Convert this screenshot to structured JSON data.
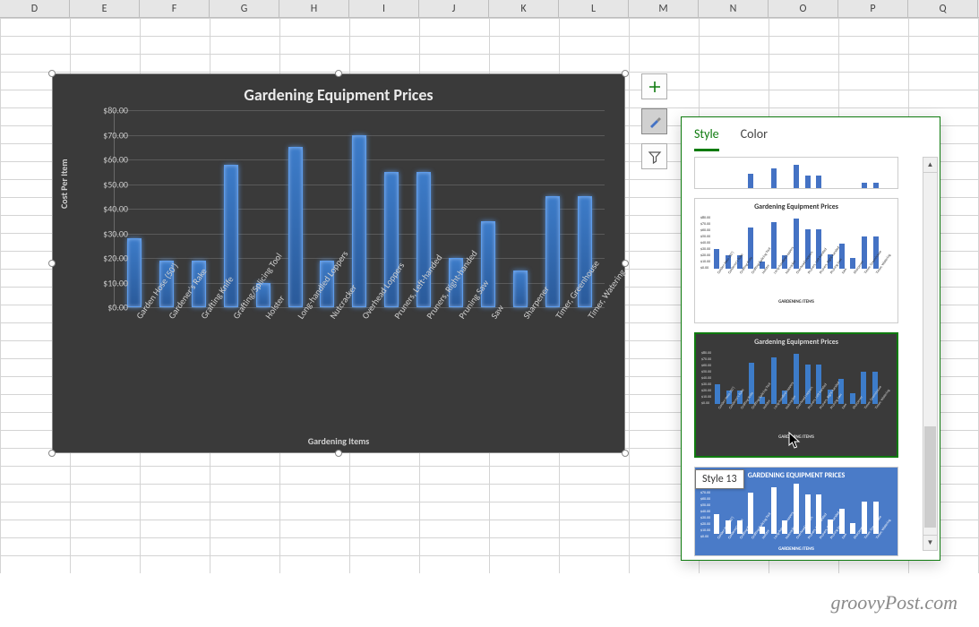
{
  "columns": [
    "D",
    "E",
    "F",
    "G",
    "H",
    "I",
    "J",
    "K",
    "L",
    "M",
    "N",
    "O",
    "P",
    "Q"
  ],
  "chart": {
    "type": "bar",
    "title": "Gardening Equipment Prices",
    "xlabel": "Gardening Items",
    "ylabel": "Cost Per Item",
    "background_color": "#3a3a3a",
    "text_color": "#d9d9d9",
    "grid_color": "#5a5a5a",
    "bar_color": "#3d7cc9",
    "bar_glow": "#5d9cec",
    "ylim": [
      0,
      80
    ],
    "ytick_step": 10,
    "yticks": [
      "$0.00",
      "$10.00",
      "$20.00",
      "$30.00",
      "$40.00",
      "$50.00",
      "$60.00",
      "$70.00",
      "$80.00"
    ],
    "categories": [
      "Garden Hose (50')",
      "Gardener's Rake",
      "Grafting Knife",
      "Grafting/Splicing Tool",
      "Holster",
      "Long-handled Loppers",
      "Nutcracker",
      "Overhead Loppers",
      "Pruners, Left-handed",
      "Pruners, Right-handed",
      "Pruning Saw",
      "Saw",
      "Sharpener",
      "Timer, Greenhouse",
      "Timer, Watering"
    ],
    "values": [
      28,
      19,
      19,
      58,
      10,
      65,
      19,
      70,
      55,
      55,
      20,
      35,
      15,
      45,
      45
    ],
    "title_fontsize": 18,
    "label_fontsize": 10,
    "tick_fontsize": 10
  },
  "side_buttons": {
    "add": "+",
    "brush": "brush",
    "filter": "filter"
  },
  "gallery": {
    "tabs": {
      "style": "Style",
      "color": "Color"
    },
    "active_tab": "style",
    "thumb_title": "Gardening Equipment Prices",
    "thumb_title_caps": "GARDENING EQUIPMENT PRICES",
    "thumb_bottom_label": "GARDENING ITEMS",
    "thumbs": [
      {
        "id": "style-prev",
        "bg": "#ffffff",
        "text": "#555",
        "bar": "#4472c4"
      },
      {
        "id": "style-white",
        "bg": "#ffffff",
        "text": "#333",
        "bar": "#4472c4"
      },
      {
        "id": "style-dark",
        "bg": "#3a3a3a",
        "text": "#d9d9d9",
        "bar": "#3d7cc9"
      },
      {
        "id": "style-blue",
        "bg": "#4a7bc8",
        "text": "#ffffff",
        "bar": "#ffffff"
      }
    ],
    "tooltip": "Style 13",
    "scroll_thumb_pos": 0.7,
    "scroll_thumb_size": 0.28
  },
  "watermark": "groovyPost.com"
}
